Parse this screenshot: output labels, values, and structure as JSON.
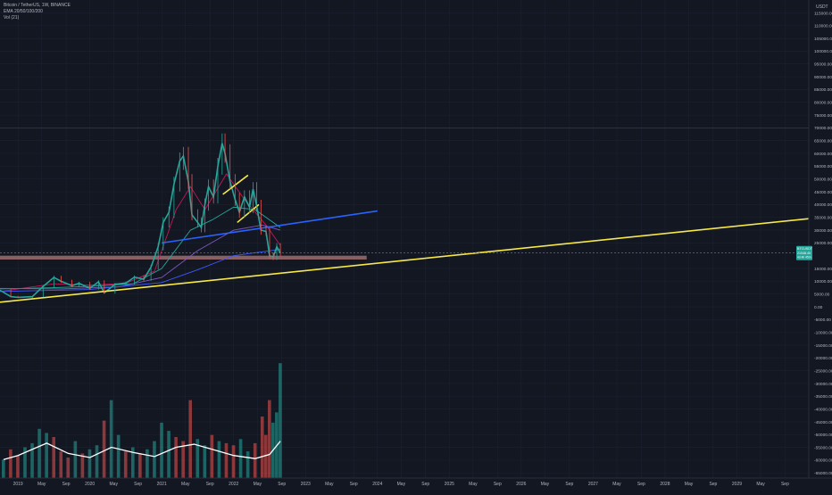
{
  "header": {
    "symbol_line": "Bitcoin / TetherUS, 1W, BINANCE",
    "indicator_ema": "EMA 20/50/100/200",
    "indicator_vol": "Vol (21)"
  },
  "price_axis": {
    "unit": "USDT",
    "ticks": [
      {
        "label": "115000.00",
        "v": 115000
      },
      {
        "label": "110000.00",
        "v": 110000
      },
      {
        "label": "105000.00",
        "v": 105000
      },
      {
        "label": "100000.00",
        "v": 100000
      },
      {
        "label": "95000.00",
        "v": 95000
      },
      {
        "label": "90000.00",
        "v": 90000
      },
      {
        "label": "85000.00",
        "v": 85000
      },
      {
        "label": "80000.00",
        "v": 80000
      },
      {
        "label": "75000.00",
        "v": 75000
      },
      {
        "label": "70000.00",
        "v": 70000
      },
      {
        "label": "65000.00",
        "v": 65000
      },
      {
        "label": "60000.00",
        "v": 60000
      },
      {
        "label": "55000.00",
        "v": 55000
      },
      {
        "label": "50000.00",
        "v": 50000
      },
      {
        "label": "45000.00",
        "v": 45000
      },
      {
        "label": "40000.00",
        "v": 40000
      },
      {
        "label": "35000.00",
        "v": 35000
      },
      {
        "label": "30000.00",
        "v": 30000
      },
      {
        "label": "25000.00",
        "v": 25000
      },
      {
        "label": "15000.00",
        "v": 15000
      },
      {
        "label": "10000.00",
        "v": 10000
      },
      {
        "label": "5000.00",
        "v": 5000
      },
      {
        "label": "0.00",
        "v": 0
      },
      {
        "label": "-5000.00",
        "v": -5000
      },
      {
        "label": "-10000.00",
        "v": -10000
      },
      {
        "label": "-15000.00",
        "v": -15000
      },
      {
        "label": "-20000.00",
        "v": -20000
      },
      {
        "label": "-25000.00",
        "v": -25000
      },
      {
        "label": "-30000.00",
        "v": -30000
      },
      {
        "label": "-35000.00",
        "v": -35000
      },
      {
        "label": "-40000.00",
        "v": -40000
      },
      {
        "label": "-45000.00",
        "v": -45000
      },
      {
        "label": "-50000.00",
        "v": -50000
      },
      {
        "label": "-55000.00",
        "v": -55000
      },
      {
        "label": "-60000.00",
        "v": -60000
      },
      {
        "label": "-65000.00",
        "v": -65000
      }
    ]
  },
  "price_tag": {
    "symbol": "BTCUSDT",
    "value": "21048.45",
    "countdown": "4d 4h 45m",
    "price": 21048.45
  },
  "time_axis": {
    "ticks": [
      {
        "label": "2019",
        "t": 2019.0
      },
      {
        "label": "May",
        "t": 2019.33
      },
      {
        "label": "Sep",
        "t": 2019.67
      },
      {
        "label": "2020",
        "t": 2020.0
      },
      {
        "label": "May",
        "t": 2020.33
      },
      {
        "label": "Sep",
        "t": 2020.67
      },
      {
        "label": "2021",
        "t": 2021.0
      },
      {
        "label": "May",
        "t": 2021.33
      },
      {
        "label": "Sep",
        "t": 2021.67
      },
      {
        "label": "2022",
        "t": 2022.0
      },
      {
        "label": "May",
        "t": 2022.33
      },
      {
        "label": "Sep",
        "t": 2022.67
      },
      {
        "label": "2023",
        "t": 2023.0
      },
      {
        "label": "May",
        "t": 2023.33
      },
      {
        "label": "Sep",
        "t": 2023.67
      },
      {
        "label": "2024",
        "t": 2024.0
      },
      {
        "label": "May",
        "t": 2024.33
      },
      {
        "label": "Sep",
        "t": 2024.67
      },
      {
        "label": "2025",
        "t": 2025.0
      },
      {
        "label": "May",
        "t": 2025.33
      },
      {
        "label": "Sep",
        "t": 2025.67
      },
      {
        "label": "2026",
        "t": 2026.0
      },
      {
        "label": "May",
        "t": 2026.33
      },
      {
        "label": "Sep",
        "t": 2026.67
      },
      {
        "label": "2027",
        "t": 2027.0
      },
      {
        "label": "May",
        "t": 2027.33
      },
      {
        "label": "Sep",
        "t": 2027.67
      },
      {
        "label": "2028",
        "t": 2028.0
      },
      {
        "label": "May",
        "t": 2028.33
      },
      {
        "label": "Sep",
        "t": 2028.67
      },
      {
        "label": "2029",
        "t": 2029.0
      },
      {
        "label": "May",
        "t": 2029.33
      },
      {
        "label": "Sep",
        "t": 2029.67
      }
    ]
  },
  "colors": {
    "background": "#131722",
    "grid": "#1f2433",
    "axis_text": "#b2b5be",
    "up": "#26a69a",
    "down": "#ef5350",
    "trend_yellow": "#f6e84a",
    "trend_blue": "#2962ff",
    "support_zone": "#b07a7a",
    "ema20": "#c2185b",
    "ema50": "#26a69a",
    "ema100": "#7e57c2",
    "ema200": "#3d5afe",
    "vol_ma": "#ffffff",
    "price_tag": "#26a69a"
  },
  "chart_data": {
    "type": "candlestick",
    "interval": "1W",
    "x_range": [
      2018.75,
      2030.0
    ],
    "y_range": [
      -67000,
      119000
    ],
    "price_series": [
      {
        "t": 2018.75,
        "c": 6500
      },
      {
        "t": 2018.9,
        "c": 4000
      },
      {
        "t": 2019.0,
        "c": 3700
      },
      {
        "t": 2019.2,
        "c": 4000
      },
      {
        "t": 2019.35,
        "c": 8000
      },
      {
        "t": 2019.5,
        "c": 11500
      },
      {
        "t": 2019.6,
        "c": 10000
      },
      {
        "t": 2019.75,
        "c": 8300
      },
      {
        "t": 2019.85,
        "c": 9200
      },
      {
        "t": 2020.0,
        "c": 7200
      },
      {
        "t": 2020.12,
        "c": 9800
      },
      {
        "t": 2020.2,
        "c": 5500
      },
      {
        "t": 2020.35,
        "c": 8800
      },
      {
        "t": 2020.5,
        "c": 9300
      },
      {
        "t": 2020.62,
        "c": 11600
      },
      {
        "t": 2020.75,
        "c": 10800
      },
      {
        "t": 2020.85,
        "c": 15500
      },
      {
        "t": 2020.95,
        "c": 23500
      },
      {
        "t": 2021.02,
        "c": 33000
      },
      {
        "t": 2021.1,
        "c": 37000
      },
      {
        "t": 2021.17,
        "c": 48000
      },
      {
        "t": 2021.25,
        "c": 57000
      },
      {
        "t": 2021.3,
        "c": 59000
      },
      {
        "t": 2021.37,
        "c": 49000
      },
      {
        "t": 2021.42,
        "c": 36000
      },
      {
        "t": 2021.5,
        "c": 33000
      },
      {
        "t": 2021.55,
        "c": 31000
      },
      {
        "t": 2021.6,
        "c": 40000
      },
      {
        "t": 2021.65,
        "c": 47000
      },
      {
        "t": 2021.72,
        "c": 43000
      },
      {
        "t": 2021.78,
        "c": 55000
      },
      {
        "t": 2021.84,
        "c": 64000
      },
      {
        "t": 2021.88,
        "c": 60000
      },
      {
        "t": 2021.95,
        "c": 49000
      },
      {
        "t": 2022.02,
        "c": 42000
      },
      {
        "t": 2022.08,
        "c": 37000
      },
      {
        "t": 2022.15,
        "c": 43000
      },
      {
        "t": 2022.22,
        "c": 39000
      },
      {
        "t": 2022.27,
        "c": 46000
      },
      {
        "t": 2022.32,
        "c": 39500
      },
      {
        "t": 2022.38,
        "c": 30000
      },
      {
        "t": 2022.45,
        "c": 29500
      },
      {
        "t": 2022.5,
        "c": 20000
      },
      {
        "t": 2022.55,
        "c": 19500
      },
      {
        "t": 2022.6,
        "c": 23500
      },
      {
        "t": 2022.65,
        "c": 21048
      }
    ],
    "ema": [
      {
        "name": "EMA 20",
        "color_key": "ema20",
        "points": [
          {
            "t": 2018.75,
            "v": 6000
          },
          {
            "t": 2019.5,
            "v": 9000
          },
          {
            "t": 2020.0,
            "v": 8500
          },
          {
            "t": 2020.5,
            "v": 9200
          },
          {
            "t": 2020.9,
            "v": 14000
          },
          {
            "t": 2021.2,
            "v": 38000
          },
          {
            "t": 2021.4,
            "v": 47000
          },
          {
            "t": 2021.6,
            "v": 38000
          },
          {
            "t": 2021.9,
            "v": 52000
          },
          {
            "t": 2022.15,
            "v": 42000
          },
          {
            "t": 2022.45,
            "v": 32000
          },
          {
            "t": 2022.65,
            "v": 24000
          }
        ]
      },
      {
        "name": "EMA 50",
        "color_key": "ema50",
        "points": [
          {
            "t": 2018.75,
            "v": 7000
          },
          {
            "t": 2019.5,
            "v": 7500
          },
          {
            "t": 2020.0,
            "v": 8000
          },
          {
            "t": 2020.6,
            "v": 9000
          },
          {
            "t": 2021.0,
            "v": 15000
          },
          {
            "t": 2021.4,
            "v": 30000
          },
          {
            "t": 2021.7,
            "v": 34000
          },
          {
            "t": 2022.0,
            "v": 39000
          },
          {
            "t": 2022.3,
            "v": 38000
          },
          {
            "t": 2022.65,
            "v": 31000
          }
        ]
      },
      {
        "name": "EMA 100",
        "color_key": "ema100",
        "points": [
          {
            "t": 2018.75,
            "v": 7200
          },
          {
            "t": 2019.6,
            "v": 7000
          },
          {
            "t": 2020.4,
            "v": 7800
          },
          {
            "t": 2021.0,
            "v": 11500
          },
          {
            "t": 2021.5,
            "v": 22000
          },
          {
            "t": 2022.0,
            "v": 30000
          },
          {
            "t": 2022.4,
            "v": 32000
          },
          {
            "t": 2022.65,
            "v": 30000
          }
        ]
      },
      {
        "name": "EMA 200",
        "color_key": "ema200",
        "points": [
          {
            "t": 2018.75,
            "v": 6000
          },
          {
            "t": 2020.0,
            "v": 6800
          },
          {
            "t": 2021.0,
            "v": 9500
          },
          {
            "t": 2021.5,
            "v": 14500
          },
          {
            "t": 2022.0,
            "v": 20000
          },
          {
            "t": 2022.65,
            "v": 22500
          }
        ]
      }
    ],
    "volume": {
      "scale_max": 60000,
      "bars": [
        {
          "t": 2018.8,
          "v": 9000,
          "up": true
        },
        {
          "t": 2018.9,
          "v": 14000,
          "up": false
        },
        {
          "t": 2019.0,
          "v": 11000,
          "up": false
        },
        {
          "t": 2019.1,
          "v": 15000,
          "up": true
        },
        {
          "t": 2019.2,
          "v": 17000,
          "up": true
        },
        {
          "t": 2019.3,
          "v": 24000,
          "up": true
        },
        {
          "t": 2019.4,
          "v": 22000,
          "up": true
        },
        {
          "t": 2019.5,
          "v": 20000,
          "up": false
        },
        {
          "t": 2019.6,
          "v": 13000,
          "up": false
        },
        {
          "t": 2019.7,
          "v": 10000,
          "up": false
        },
        {
          "t": 2019.8,
          "v": 18000,
          "up": true
        },
        {
          "t": 2019.9,
          "v": 12000,
          "up": false
        },
        {
          "t": 2020.0,
          "v": 14000,
          "up": true
        },
        {
          "t": 2020.1,
          "v": 16000,
          "up": true
        },
        {
          "t": 2020.2,
          "v": 28000,
          "up": false
        },
        {
          "t": 2020.3,
          "v": 38000,
          "up": true
        },
        {
          "t": 2020.4,
          "v": 21000,
          "up": true
        },
        {
          "t": 2020.5,
          "v": 13000,
          "up": false
        },
        {
          "t": 2020.6,
          "v": 15000,
          "up": true
        },
        {
          "t": 2020.7,
          "v": 12000,
          "up": false
        },
        {
          "t": 2020.8,
          "v": 14000,
          "up": true
        },
        {
          "t": 2020.9,
          "v": 18000,
          "up": true
        },
        {
          "t": 2021.0,
          "v": 27000,
          "up": true
        },
        {
          "t": 2021.1,
          "v": 23000,
          "up": true
        },
        {
          "t": 2021.2,
          "v": 20000,
          "up": false
        },
        {
          "t": 2021.3,
          "v": 18000,
          "up": false
        },
        {
          "t": 2021.4,
          "v": 38000,
          "up": false
        },
        {
          "t": 2021.5,
          "v": 19000,
          "up": true
        },
        {
          "t": 2021.6,
          "v": 16000,
          "up": true
        },
        {
          "t": 2021.7,
          "v": 21000,
          "up": false
        },
        {
          "t": 2021.8,
          "v": 18000,
          "up": true
        },
        {
          "t": 2021.9,
          "v": 17000,
          "up": false
        },
        {
          "t": 2022.0,
          "v": 16000,
          "up": false
        },
        {
          "t": 2022.1,
          "v": 19000,
          "up": true
        },
        {
          "t": 2022.2,
          "v": 13000,
          "up": true
        },
        {
          "t": 2022.3,
          "v": 17000,
          "up": false
        },
        {
          "t": 2022.4,
          "v": 30000,
          "up": false
        },
        {
          "t": 2022.45,
          "v": 21000,
          "up": false
        },
        {
          "t": 2022.5,
          "v": 38000,
          "up": false
        },
        {
          "t": 2022.55,
          "v": 27000,
          "up": true
        },
        {
          "t": 2022.6,
          "v": 32000,
          "up": true
        },
        {
          "t": 2022.65,
          "v": 56000,
          "up": true
        }
      ],
      "ma": [
        {
          "t": 2018.8,
          "v": 9000
        },
        {
          "t": 2019.0,
          "v": 11000
        },
        {
          "t": 2019.4,
          "v": 17000
        },
        {
          "t": 2019.7,
          "v": 12000
        },
        {
          "t": 2020.0,
          "v": 10000
        },
        {
          "t": 2020.3,
          "v": 15000
        },
        {
          "t": 2020.6,
          "v": 12500
        },
        {
          "t": 2020.9,
          "v": 10500
        },
        {
          "t": 2021.2,
          "v": 15000
        },
        {
          "t": 2021.45,
          "v": 16500
        },
        {
          "t": 2021.7,
          "v": 14000
        },
        {
          "t": 2022.0,
          "v": 11000
        },
        {
          "t": 2022.3,
          "v": 9500
        },
        {
          "t": 2022.5,
          "v": 11500
        },
        {
          "t": 2022.65,
          "v": 18000
        }
      ]
    },
    "drawings": [
      {
        "name": "long-term-support",
        "color_key": "trend_yellow",
        "from": {
          "t": 2018.75,
          "v": 1800
        },
        "to": {
          "t": 2030.0,
          "v": 34500
        }
      },
      {
        "name": "blue-trendline",
        "color_key": "trend_blue",
        "from": {
          "t": 2021.0,
          "v": 25000
        },
        "to": {
          "t": 2024.0,
          "v": 37500
        }
      },
      {
        "name": "channel-upper",
        "color_key": "trend_yellow",
        "from": {
          "t": 2021.85,
          "v": 44000
        },
        "to": {
          "t": 2022.2,
          "v": 51500
        }
      },
      {
        "name": "channel-lower",
        "color_key": "trend_yellow",
        "from": {
          "t": 2022.05,
          "v": 33000
        },
        "to": {
          "t": 2022.35,
          "v": 40000
        }
      }
    ],
    "support_zone": {
      "from_t": 2018.75,
      "to_t": 2023.85,
      "low": 18500,
      "high": 20000
    }
  }
}
